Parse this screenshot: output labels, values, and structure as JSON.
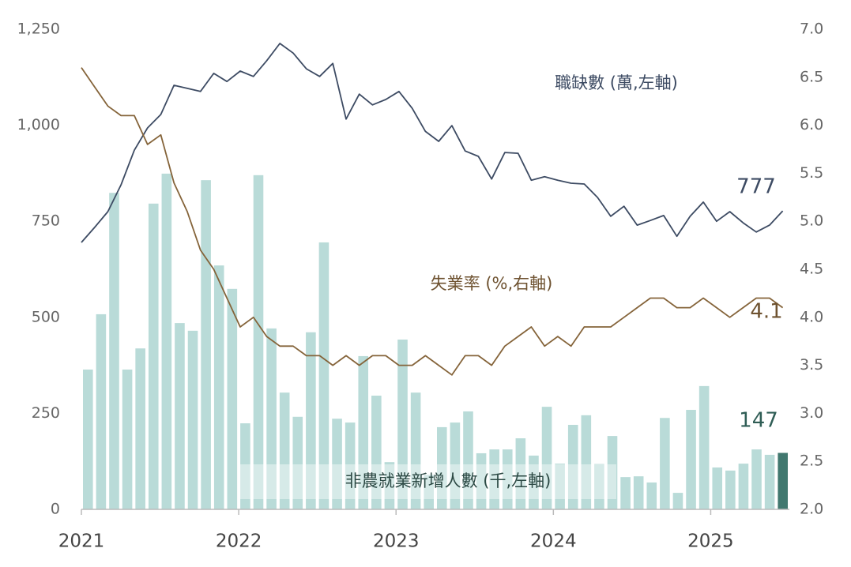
{
  "chart_data": {
    "type": "bar-line-dual",
    "categories": [
      "2021",
      null,
      null,
      null,
      null,
      null,
      null,
      null,
      null,
      null,
      null,
      null,
      "2022",
      null,
      null,
      null,
      null,
      null,
      null,
      null,
      null,
      null,
      null,
      null,
      "2023",
      null,
      null,
      null,
      null,
      null,
      null,
      null,
      null,
      null,
      null,
      null,
      "2024",
      null,
      null,
      null,
      null,
      null,
      null,
      null,
      null,
      null,
      null,
      null,
      "2025",
      null,
      null,
      null,
      null,
      null
    ],
    "series": [
      {
        "name": "非農就業新增人數 (千,左軸)",
        "type": "bar",
        "color": "#b9dbd8",
        "highlight_color": "#41786f",
        "axis": "y",
        "values": [
          364,
          508,
          824,
          364,
          419,
          796,
          874,
          485,
          465,
          857,
          635,
          574,
          224,
          870,
          471,
          304,
          241,
          461,
          695,
          236,
          226,
          399,
          296,
          123,
          442,
          304,
          90,
          214,
          226,
          255,
          146,
          156,
          156,
          185,
          140,
          267,
          119,
          220,
          245,
          118,
          191,
          84,
          86,
          70,
          238,
          43,
          259,
          321,
          109,
          101,
          119,
          156,
          142,
          147
        ]
      },
      {
        "name": "職缺數 (萬,左軸)",
        "type": "line",
        "color": "#3d4b63",
        "axis": "y",
        "values": [
          695,
          734,
          775,
          845,
          935,
          993,
          1028,
          1104,
          1096,
          1088,
          1135,
          1114,
          1141,
          1127,
          1168,
          1213,
          1188,
          1147,
          1127,
          1161,
          1016,
          1081,
          1053,
          1067,
          1088,
          1044,
          984,
          958,
          999,
          933,
          919,
          860,
          929,
          927,
          857,
          866,
          857,
          849,
          847,
          812,
          763,
          789,
          740,
          752,
          765,
          711,
          763,
          800,
          750,
          775,
          746,
          722,
          740,
          777
        ]
      },
      {
        "name": "失業率 (%,右軸)",
        "type": "line",
        "color": "#85643a",
        "axis": "y2",
        "values": [
          6.6,
          6.4,
          6.2,
          6.1,
          6.1,
          5.8,
          5.9,
          5.4,
          5.1,
          4.7,
          4.5,
          4.2,
          3.9,
          4.0,
          3.8,
          3.7,
          3.7,
          3.6,
          3.6,
          3.5,
          3.6,
          3.5,
          3.6,
          3.6,
          3.5,
          3.5,
          3.6,
          3.5,
          3.4,
          3.6,
          3.6,
          3.5,
          3.7,
          3.8,
          3.9,
          3.7,
          3.8,
          3.7,
          3.9,
          3.9,
          3.9,
          4.0,
          4.1,
          4.2,
          4.2,
          4.1,
          4.1,
          4.2,
          4.1,
          4.0,
          4.1,
          4.2,
          4.2,
          4.1
        ]
      }
    ],
    "ylim": [
      0,
      1250
    ],
    "yticks": [
      0,
      250,
      500,
      750,
      {
        "value": 1000,
        "label": "1,000"
      },
      {
        "value": 1250,
        "label": "1,250"
      }
    ],
    "y2lim": [
      2.0,
      7.0
    ],
    "y2ticks": [
      {
        "value": 2.0,
        "label": "2.0"
      },
      {
        "value": 2.5,
        "label": "2.5"
      },
      {
        "value": 3.0,
        "label": "3.0"
      },
      {
        "value": 3.5,
        "label": "3.5"
      },
      {
        "value": 4.0,
        "label": "4.0"
      },
      {
        "value": 4.5,
        "label": "4.5"
      },
      {
        "value": 5.0,
        "label": "5.0"
      },
      {
        "value": 5.5,
        "label": "5.5"
      },
      {
        "value": 6.0,
        "label": "6.0"
      },
      {
        "value": 6.5,
        "label": "6.5"
      },
      {
        "value": 7.0,
        "label": "7.0"
      }
    ],
    "grid": false
  }
}
